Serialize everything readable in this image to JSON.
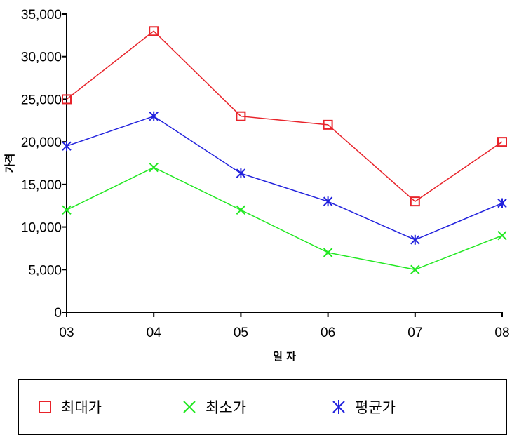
{
  "chart_data": {
    "type": "line",
    "categories": [
      "03",
      "04",
      "05",
      "06",
      "07",
      "08"
    ],
    "xlabel": "일 자",
    "ylabel": "가격",
    "ylim": [
      0,
      35000
    ],
    "yticks": [
      "0",
      "5,000",
      "10,000",
      "15,000",
      "20,000",
      "25,000",
      "30,000",
      "35,000"
    ],
    "ytick_values": [
      0,
      5000,
      10000,
      15000,
      20000,
      25000,
      30000,
      35000
    ],
    "grid": false,
    "legend_position": "bottom",
    "series": [
      {
        "name": "최대가",
        "color": "#e8232a",
        "marker": "square",
        "values": [
          25000,
          33000,
          23000,
          22000,
          13000,
          20000
        ]
      },
      {
        "name": "최소가",
        "color": "#22e822",
        "marker": "x",
        "values": [
          12000,
          17000,
          12000,
          7000,
          5000,
          9000
        ]
      },
      {
        "name": "평균가",
        "color": "#2222dd",
        "marker": "asterisk",
        "values": [
          19500,
          23000,
          16300,
          13000,
          8500,
          12800
        ]
      }
    ]
  }
}
